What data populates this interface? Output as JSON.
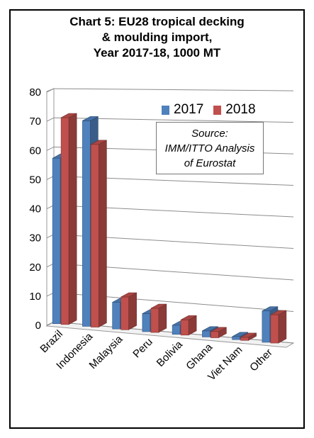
{
  "chart_data": {
    "type": "bar",
    "title": [
      "Chart 5: EU28 tropical decking",
      "& moulding import,",
      "Year 2017-18, 1000 MT"
    ],
    "categories": [
      "Brazil",
      "Indonesia",
      "Malaysia",
      "Peru",
      "Bolivia",
      "Ghana",
      "Viet Nam",
      "Other"
    ],
    "series": [
      {
        "name": "2017",
        "color": "#4f81bd",
        "values": [
          57,
          70,
          9,
          6,
          3,
          2,
          1,
          10
        ]
      },
      {
        "name": "2018",
        "color": "#c0504d",
        "values": [
          71,
          62,
          11,
          8,
          5,
          2,
          1,
          9
        ]
      }
    ],
    "yticks": [
      "0",
      "10",
      "20",
      "30",
      "40",
      "50",
      "60",
      "70",
      "80"
    ],
    "ylim": [
      0,
      80
    ],
    "grid": true,
    "legend_position": "top-right",
    "annotation": [
      "Source:",
      "IMM/ITTO Analysis",
      "of Eurostat"
    ]
  }
}
